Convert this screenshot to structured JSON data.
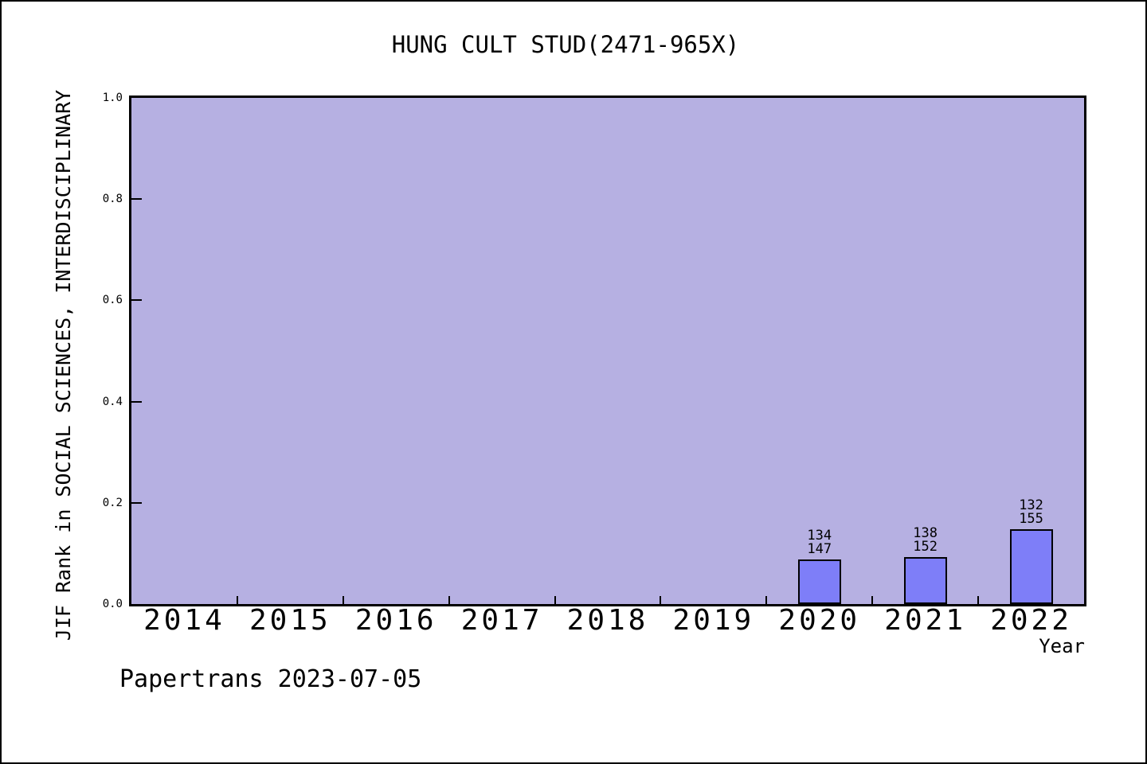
{
  "figure": {
    "footer": "Papertrans 2023-07-05",
    "background_color": "#ffffff",
    "border_color": "#000000"
  },
  "chart_data": {
    "type": "bar",
    "title": "HUNG CULT STUD(2471-965X)",
    "xlabel": "Year",
    "ylabel": "JIF Rank in SOCIAL SCIENCES, INTERDISCIPLINARY",
    "categories": [
      "2014",
      "2015",
      "2016",
      "2017",
      "2018",
      "2019",
      "2020",
      "2021",
      "2022"
    ],
    "y_tick_labels": [
      "0.0",
      "0.2",
      "0.4",
      "0.6",
      "0.8",
      "1.0"
    ],
    "y_tick_values": [
      0.0,
      0.2,
      0.4,
      0.6,
      0.8,
      1.0
    ],
    "y_tick_marks_at": [
      0.2,
      0.4,
      0.6,
      0.8
    ],
    "ylim": [
      0,
      1
    ],
    "grid": false,
    "legend": "none",
    "bars": [
      {
        "year": "2020",
        "rank": 134,
        "total": 147,
        "value": 0.0884
      },
      {
        "year": "2021",
        "rank": 138,
        "total": 152,
        "value": 0.0921
      },
      {
        "year": "2022",
        "rank": 132,
        "total": 155,
        "value": 0.1484
      }
    ],
    "bar_label_note": "each bar is annotated with rank over total, e.g. 134 over 147",
    "colors": {
      "plot_background": "#b6b0e2",
      "bar_fill": "#7e7ef8",
      "bar_edge": "#000000",
      "axis": "#000000",
      "text": "#000000"
    }
  }
}
